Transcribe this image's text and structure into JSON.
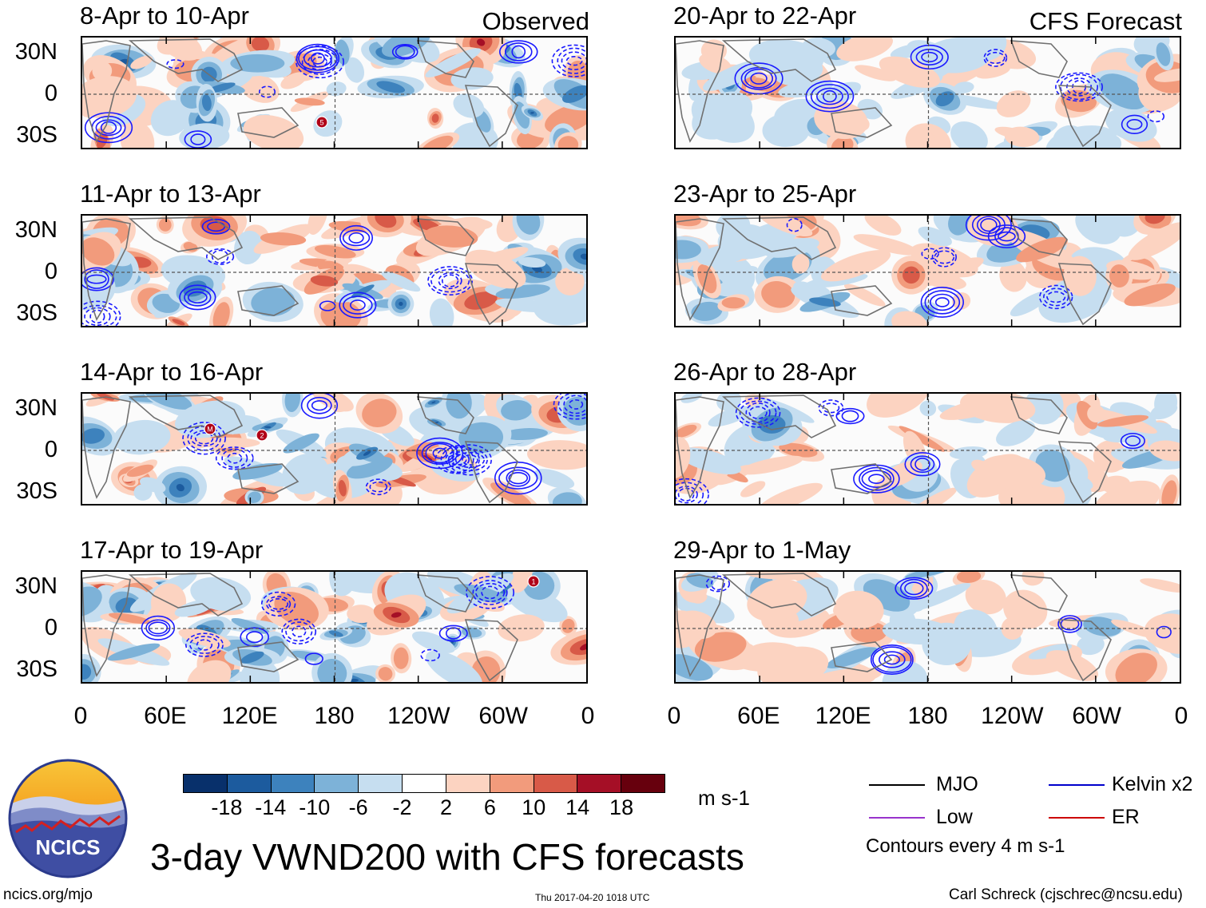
{
  "panels_left": [
    {
      "title": "8-Apr to 10-Apr",
      "tag": "Observed"
    },
    {
      "title": "11-Apr to 13-Apr",
      "tag": ""
    },
    {
      "title": "14-Apr to 16-Apr",
      "tag": ""
    },
    {
      "title": "17-Apr to 19-Apr",
      "tag": ""
    }
  ],
  "panels_right": [
    {
      "title": "20-Apr to 22-Apr",
      "tag": "CFS Forecast"
    },
    {
      "title": "23-Apr to 25-Apr",
      "tag": ""
    },
    {
      "title": "26-Apr to 28-Apr",
      "tag": ""
    },
    {
      "title": "29-Apr to 1-May",
      "tag": ""
    }
  ],
  "lat_labels": [
    "30N",
    "0",
    "30S"
  ],
  "lon_labels": [
    "0",
    "60E",
    "120E",
    "180",
    "120W",
    "60W",
    "0"
  ],
  "storm_markers": [
    {
      "panel": 0,
      "label": "5"
    },
    {
      "panel": 2,
      "label": "M"
    },
    {
      "panel": 2,
      "label": "2"
    },
    {
      "panel": 3,
      "label": "1"
    }
  ],
  "colorbar": {
    "labels": [
      "-18",
      "-14",
      "-10",
      "-6",
      "-2",
      "2",
      "6",
      "10",
      "14",
      "18"
    ],
    "colors": [
      "#08306b",
      "#1c5b9e",
      "#3d82bd",
      "#7db2d8",
      "#c6def0",
      "#ffffff",
      "#fcd3c1",
      "#f29b7c",
      "#d85a48",
      "#a50f26",
      "#67000d"
    ],
    "units": "m s-1"
  },
  "legend": {
    "items": [
      {
        "label": "MJO",
        "color": "#000000"
      },
      {
        "label": "Kelvin x2",
        "color": "#0000cc"
      },
      {
        "label": "Low",
        "color": "#9933cc"
      },
      {
        "label": "ER",
        "color": "#cc0000"
      }
    ],
    "note": "Contours every 4 m s-1"
  },
  "logo": {
    "text": "NCICS"
  },
  "title": "3-day VWND200 with CFS forecasts",
  "footer": {
    "url": "ncics.org/mjo",
    "timestamp": "Thu 2017-04-20 1018 UTC",
    "author": "Carl Schreck (cjschrec@ncsu.edu)"
  }
}
